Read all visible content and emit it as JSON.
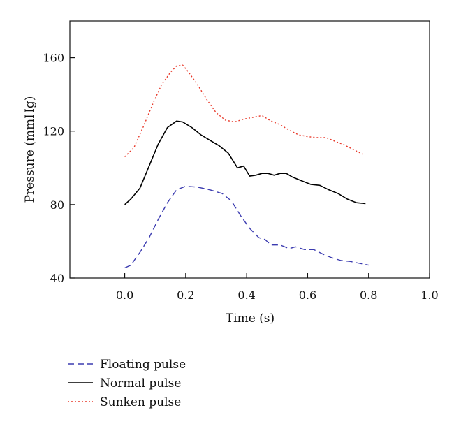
{
  "chart_data": {
    "type": "line",
    "title": "",
    "xlabel": "Time (s)",
    "ylabel": "Pressure (mmHg)",
    "xlim": [
      -0.18,
      1.0
    ],
    "ylim": [
      40,
      180
    ],
    "xticks": [
      0.0,
      0.2,
      0.4,
      0.6,
      0.8,
      1.0
    ],
    "xtick_labels": [
      "0.0",
      "0.2",
      "0.4",
      "0.6",
      "0.8",
      "1.0"
    ],
    "yticks": [
      40,
      80,
      120,
      160
    ],
    "ytick_labels": [
      "40",
      "80",
      "120",
      "160"
    ],
    "grid": false,
    "legend_position": "bottom-left, below plot",
    "series": [
      {
        "name": "Floating pulse",
        "color": "#3b3bb0",
        "dash": "dashed",
        "x": [
          0.0,
          0.02,
          0.05,
          0.08,
          0.11,
          0.14,
          0.17,
          0.2,
          0.24,
          0.28,
          0.32,
          0.35,
          0.38,
          0.41,
          0.44,
          0.46,
          0.48,
          0.51,
          0.54,
          0.56,
          0.59,
          0.62,
          0.65,
          0.68,
          0.71,
          0.74,
          0.77,
          0.8
        ],
        "y": [
          45.5,
          47,
          54,
          62,
          72,
          81,
          88,
          90,
          89.5,
          88,
          86,
          82,
          74,
          67,
          62,
          61,
          58,
          58,
          56,
          57,
          55.5,
          55.5,
          53,
          51,
          49.5,
          49,
          48,
          47
        ]
      },
      {
        "name": "Normal pulse",
        "color": "#000000",
        "dash": "solid",
        "x": [
          0.0,
          0.02,
          0.05,
          0.08,
          0.11,
          0.14,
          0.17,
          0.19,
          0.22,
          0.25,
          0.28,
          0.31,
          0.34,
          0.37,
          0.39,
          0.41,
          0.43,
          0.45,
          0.47,
          0.49,
          0.51,
          0.53,
          0.55,
          0.58,
          0.61,
          0.64,
          0.67,
          0.7,
          0.73,
          0.76,
          0.79
        ],
        "y": [
          80,
          83,
          89,
          101,
          113,
          122,
          125.5,
          125,
          122,
          118,
          115,
          112,
          108,
          100,
          101,
          95.5,
          96,
          97,
          97,
          96,
          97,
          97,
          95,
          93,
          91,
          90.5,
          88,
          86,
          83,
          81,
          80.5
        ]
      },
      {
        "name": "Sunken pulse",
        "color": "#e8392a",
        "dash": "dotted",
        "x": [
          0.0,
          0.03,
          0.06,
          0.09,
          0.12,
          0.15,
          0.17,
          0.19,
          0.21,
          0.24,
          0.27,
          0.3,
          0.33,
          0.36,
          0.39,
          0.42,
          0.45,
          0.48,
          0.51,
          0.54,
          0.57,
          0.6,
          0.63,
          0.66,
          0.69,
          0.72,
          0.75,
          0.78
        ],
        "y": [
          106,
          111,
          122,
          134,
          145,
          152,
          155.5,
          156,
          152,
          145,
          137,
          130,
          126,
          125,
          126.5,
          127.5,
          128.5,
          125.5,
          123.5,
          120.5,
          118,
          117,
          116.5,
          116.5,
          114.5,
          112.5,
          110,
          107.5
        ]
      }
    ]
  }
}
